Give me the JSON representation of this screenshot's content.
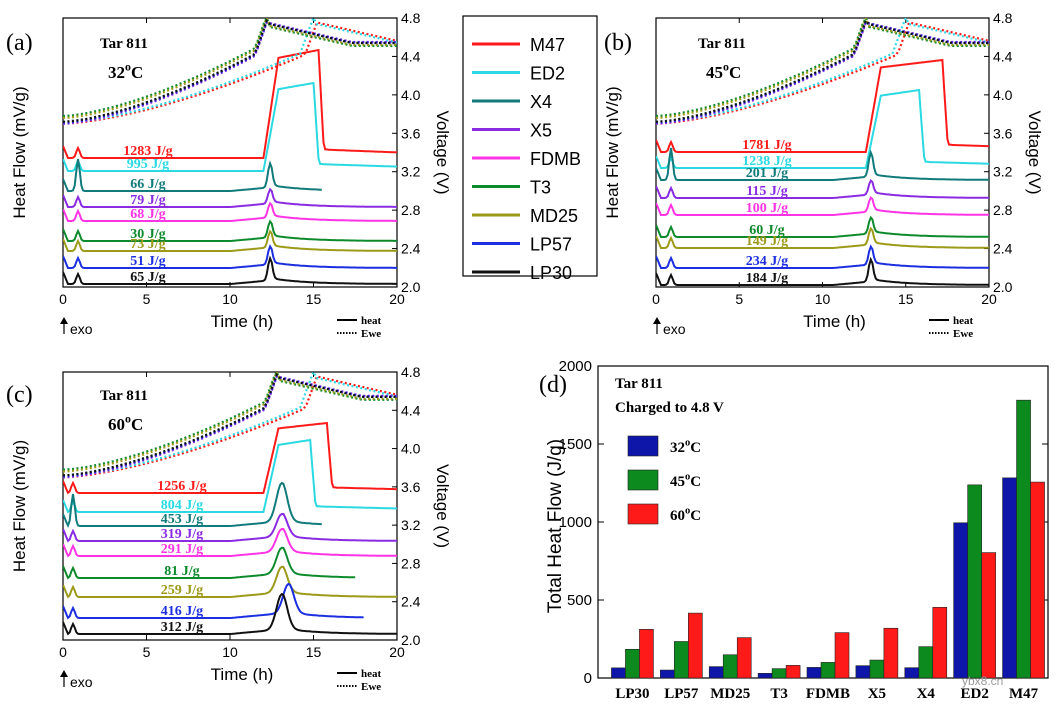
{
  "curve_names": [
    "M47",
    "ED2",
    "X4",
    "X5",
    "FDMB",
    "T3",
    "MD25",
    "LP57",
    "LP30"
  ],
  "curve_colors": {
    "M47": "#ff1a1a",
    "ED2": "#2ad9e2",
    "X4": "#117a7a",
    "X5": "#8a2be2",
    "FDMB": "#ff33e6",
    "T3": "#0d8a2c",
    "MD25": "#9c9a18",
    "LP57": "#1c2ee0",
    "LP30": "#111111"
  },
  "common": {
    "x_label": "Time (h)",
    "y_left_label": "Heat Flow (mV/g)",
    "y_right_label": "Voltage (V)",
    "x_ticks": [
      "0",
      "5",
      "10",
      "15",
      "20"
    ],
    "voltage_ticks": [
      "2.0",
      "2.4",
      "2.8",
      "3.2",
      "3.6",
      "4.0",
      "4.4",
      "4.8"
    ],
    "exo_label": "exo",
    "line_legend": {
      "heat": "heat",
      "ewe": "Ewe"
    }
  },
  "panels": [
    {
      "id": "a",
      "label": "(a)",
      "cell": "Tar 811",
      "temp_value": "32",
      "temp_deg": "o",
      "temp_unit": "C",
      "heat_labels": [
        {
          "name": "M47",
          "text": "1283 J/g"
        },
        {
          "name": "ED2",
          "text": "995 J/g"
        },
        {
          "name": "X4",
          "text": "66 J/g"
        },
        {
          "name": "X5",
          "text": "79 J/g"
        },
        {
          "name": "FDMB",
          "text": "68 J/g"
        },
        {
          "name": "T3",
          "text": "30 J/g"
        },
        {
          "name": "MD25",
          "text": "73 J/g"
        },
        {
          "name": "LP57",
          "text": "51 J/g"
        },
        {
          "name": "LP30",
          "text": "65 J/g"
        }
      ]
    },
    {
      "id": "b",
      "label": "(b)",
      "cell": "Tar 811",
      "temp_value": "45",
      "temp_deg": "o",
      "temp_unit": "C",
      "heat_labels": [
        {
          "name": "M47",
          "text": "1781 J/g"
        },
        {
          "name": "ED2",
          "text": "1238 J/g"
        },
        {
          "name": "X4",
          "text": "201 J/g"
        },
        {
          "name": "X5",
          "text": "115 J/g"
        },
        {
          "name": "FDMB",
          "text": "100 J/g"
        },
        {
          "name": "T3",
          "text": "60 J/g"
        },
        {
          "name": "MD25",
          "text": "149 J/g"
        },
        {
          "name": "LP57",
          "text": "234 J/g"
        },
        {
          "name": "LP30",
          "text": "184 J/g"
        }
      ]
    },
    {
      "id": "c",
      "label": "(c)",
      "cell": "Tar 811",
      "temp_value": "60",
      "temp_deg": "o",
      "temp_unit": "C",
      "heat_labels": [
        {
          "name": "M47",
          "text": "1256 J/g"
        },
        {
          "name": "ED2",
          "text": "804 J/g"
        },
        {
          "name": "X4",
          "text": "453 J/g"
        },
        {
          "name": "X5",
          "text": "319 J/g"
        },
        {
          "name": "FDMB",
          "text": "291 J/g"
        },
        {
          "name": "T3",
          "text": "81 J/g"
        },
        {
          "name": "MD25",
          "text": "259 J/g"
        },
        {
          "name": "LP57",
          "text": "416 J/g"
        },
        {
          "name": "LP30",
          "text": "312 J/g"
        }
      ]
    }
  ],
  "chart_data": [
    {
      "type": "line",
      "panel": "a",
      "title": "Tar 811 32°C",
      "xlabel": "Time (h)",
      "ylabel": "Heat Flow (mV/g)",
      "y2label": "Voltage (V)",
      "xlim": [
        0,
        20
      ],
      "y2lim": [
        2.0,
        4.8
      ],
      "heat_flow_J_per_g": {
        "M47": 1283,
        "ED2": 995,
        "X4": 66,
        "X5": 79,
        "FDMB": 68,
        "T3": 30,
        "MD25": 73,
        "LP57": 51,
        "LP30": 65
      }
    },
    {
      "type": "line",
      "panel": "b",
      "title": "Tar 811 45°C",
      "xlabel": "Time (h)",
      "ylabel": "Heat Flow (mV/g)",
      "y2label": "Voltage (V)",
      "xlim": [
        0,
        20
      ],
      "y2lim": [
        2.0,
        4.8
      ],
      "heat_flow_J_per_g": {
        "M47": 1781,
        "ED2": 1238,
        "X4": 201,
        "X5": 115,
        "FDMB": 100,
        "T3": 60,
        "MD25": 149,
        "LP57": 234,
        "LP30": 184
      }
    },
    {
      "type": "line",
      "panel": "c",
      "title": "Tar 811 60°C",
      "xlabel": "Time (h)",
      "ylabel": "Heat Flow (mV/g)",
      "y2label": "Voltage (V)",
      "xlim": [
        0,
        20
      ],
      "y2lim": [
        2.0,
        4.8
      ],
      "heat_flow_J_per_g": {
        "M47": 1256,
        "ED2": 804,
        "X4": 453,
        "X5": 319,
        "FDMB": 291,
        "T3": 81,
        "MD25": 259,
        "LP57": 416,
        "LP30": 312
      }
    },
    {
      "type": "bar",
      "panel": "d",
      "label": "(d)",
      "title": "Tar 811",
      "subtitle": "Charged to 4.8 V",
      "ylabel": "Total Heat Flow (J/g)",
      "ylim": [
        0,
        2000
      ],
      "yticks": [
        "0",
        "500",
        "1000",
        "1500",
        "2000"
      ],
      "categories": [
        "LP30",
        "LP57",
        "MD25",
        "T3",
        "FDMB",
        "X5",
        "X4",
        "ED2",
        "M47"
      ],
      "series": [
        {
          "name": "32°C",
          "temp_value": "32",
          "deg": "o",
          "unit": "C",
          "color": "#0d16a8",
          "values": [
            65,
            51,
            73,
            30,
            68,
            79,
            66,
            995,
            1283
          ]
        },
        {
          "name": "45°C",
          "temp_value": "45",
          "deg": "o",
          "unit": "C",
          "color": "#0c8a1e",
          "values": [
            184,
            234,
            149,
            60,
            100,
            115,
            201,
            1238,
            1781
          ]
        },
        {
          "name": "60°C",
          "temp_value": "60",
          "deg": "o",
          "unit": "C",
          "color": "#ff1a1a",
          "values": [
            312,
            416,
            259,
            81,
            291,
            319,
            453,
            804,
            1256
          ]
        }
      ]
    }
  ],
  "watermark": "ybx8.cn"
}
